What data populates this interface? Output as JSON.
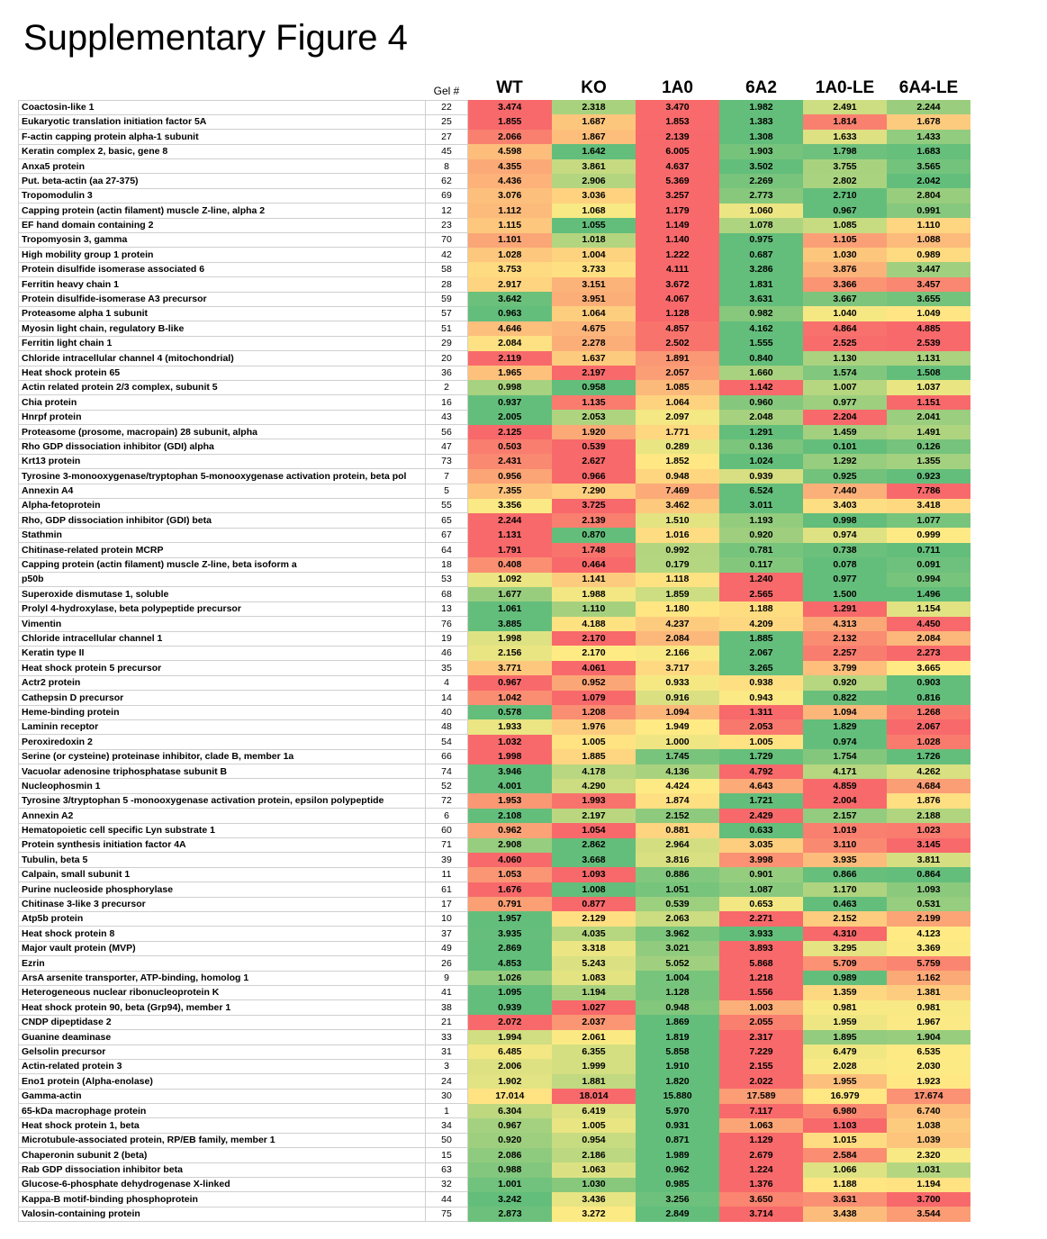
{
  "title": "Supplementary Figure 4",
  "chart_data": {
    "type": "heatmap",
    "gel_header": "Gel #",
    "columns": [
      "WT",
      "KO",
      "1A0",
      "6A2",
      "1A0-LE",
      "6A4-LE"
    ],
    "color_scale": {
      "low": "#63BE7B",
      "mid": "#FFEB84",
      "high": "#F8696B",
      "normalization": "per-row",
      "low_means": "row minimum (green)",
      "high_means": "row maximum (red)"
    },
    "rows": [
      {
        "protein": "Coactosin-like 1",
        "gel": 22,
        "values": [
          3.474,
          2.318,
          3.47,
          1.982,
          2.491,
          2.244
        ]
      },
      {
        "protein": "Eukaryotic translation initiation factor 5A",
        "gel": 25,
        "values": [
          1.855,
          1.687,
          1.853,
          1.383,
          1.814,
          1.678
        ]
      },
      {
        "protein": "F-actin capping protein alpha-1 subunit",
        "gel": 27,
        "values": [
          2.066,
          1.867,
          2.139,
          1.308,
          1.633,
          1.433
        ]
      },
      {
        "protein": "Keratin complex 2, basic, gene 8",
        "gel": 45,
        "values": [
          4.598,
          1.642,
          6.005,
          1.903,
          1.798,
          1.683
        ]
      },
      {
        "protein": "Anxa5 protein",
        "gel": 8,
        "values": [
          4.355,
          3.861,
          4.637,
          3.502,
          3.755,
          3.565
        ]
      },
      {
        "protein": "Put. beta-actin (aa 27-375)",
        "gel": 62,
        "values": [
          4.436,
          2.906,
          5.369,
          2.269,
          2.802,
          2.042
        ]
      },
      {
        "protein": "Tropomodulin 3",
        "gel": 69,
        "values": [
          3.076,
          3.036,
          3.257,
          2.773,
          2.71,
          2.804
        ]
      },
      {
        "protein": "Capping protein (actin filament) muscle Z-line, alpha 2",
        "gel": 12,
        "values": [
          1.112,
          1.068,
          1.179,
          1.06,
          0.967,
          0.991
        ]
      },
      {
        "protein": "EF hand domain containing 2",
        "gel": 23,
        "values": [
          1.115,
          1.055,
          1.149,
          1.078,
          1.085,
          1.11
        ]
      },
      {
        "protein": "Tropomyosin 3, gamma",
        "gel": 70,
        "values": [
          1.101,
          1.018,
          1.14,
          0.975,
          1.105,
          1.088
        ]
      },
      {
        "protein": "High mobility group 1 protein",
        "gel": 42,
        "values": [
          1.028,
          1.004,
          1.222,
          0.687,
          1.03,
          0.989
        ]
      },
      {
        "protein": "Protein disulfide isomerase associated 6",
        "gel": 58,
        "values": [
          3.753,
          3.733,
          4.111,
          3.286,
          3.876,
          3.447
        ]
      },
      {
        "protein": "Ferritin heavy chain 1",
        "gel": 28,
        "values": [
          2.917,
          3.151,
          3.672,
          1.831,
          3.366,
          3.457
        ]
      },
      {
        "protein": "Protein disulfide-isomerase A3 precursor",
        "gel": 59,
        "values": [
          3.642,
          3.951,
          4.067,
          3.631,
          3.667,
          3.655
        ]
      },
      {
        "protein": "Proteasome alpha 1 subunit",
        "gel": 57,
        "values": [
          0.963,
          1.064,
          1.128,
          0.982,
          1.04,
          1.049
        ]
      },
      {
        "protein": "Myosin light chain, regulatory B-like",
        "gel": 51,
        "values": [
          4.646,
          4.675,
          4.857,
          4.162,
          4.864,
          4.885
        ]
      },
      {
        "protein": "Ferritin light chain 1",
        "gel": 29,
        "values": [
          2.084,
          2.278,
          2.502,
          1.555,
          2.525,
          2.539
        ]
      },
      {
        "protein": "Chloride intracellular channel 4 (mitochondrial)",
        "gel": 20,
        "values": [
          2.119,
          1.637,
          1.891,
          0.84,
          1.13,
          1.131
        ]
      },
      {
        "protein": "Heat shock protein 65",
        "gel": 36,
        "values": [
          1.965,
          2.197,
          2.057,
          1.66,
          1.574,
          1.508
        ]
      },
      {
        "protein": "Actin related protein 2/3 complex, subunit 5",
        "gel": 2,
        "values": [
          0.998,
          0.958,
          1.085,
          1.142,
          1.007,
          1.037
        ]
      },
      {
        "protein": "Chia protein",
        "gel": 16,
        "values": [
          0.937,
          1.135,
          1.064,
          0.96,
          0.977,
          1.151
        ]
      },
      {
        "protein": "Hnrpf protein",
        "gel": 43,
        "values": [
          2.005,
          2.053,
          2.097,
          2.048,
          2.204,
          2.041
        ]
      },
      {
        "protein": "Proteasome (prosome, macropain) 28 subunit, alpha",
        "gel": 56,
        "values": [
          2.125,
          1.92,
          1.771,
          1.291,
          1.459,
          1.491
        ]
      },
      {
        "protein": "Rho GDP dissociation inhibitor (GDI) alpha",
        "gel": 47,
        "values": [
          0.503,
          0.539,
          0.289,
          0.136,
          0.101,
          0.126
        ]
      },
      {
        "protein": "Krt13 protein",
        "gel": 73,
        "values": [
          2.431,
          2.627,
          1.852,
          1.024,
          1.292,
          1.355
        ]
      },
      {
        "protein": "Tyrosine 3-monooxygenase/tryptophan 5-monooxygenase activation protein, beta pol",
        "gel": 7,
        "values": [
          0.956,
          0.966,
          0.948,
          0.939,
          0.925,
          0.923
        ]
      },
      {
        "protein": "Annexin A4",
        "gel": 5,
        "values": [
          7.355,
          7.29,
          7.469,
          6.524,
          7.44,
          7.786
        ]
      },
      {
        "protein": "Alpha-fetoprotein",
        "gel": 55,
        "values": [
          3.356,
          3.725,
          3.462,
          3.011,
          3.403,
          3.418
        ]
      },
      {
        "protein": "Rho, GDP dissociation inhibitor (GDI) beta",
        "gel": 65,
        "values": [
          2.244,
          2.139,
          1.51,
          1.193,
          0.998,
          1.077
        ]
      },
      {
        "protein": "Stathmin",
        "gel": 67,
        "values": [
          1.131,
          0.87,
          1.016,
          0.92,
          0.974,
          0.999
        ]
      },
      {
        "protein": "Chitinase-related protein MCRP",
        "gel": 64,
        "values": [
          1.791,
          1.748,
          0.992,
          0.781,
          0.738,
          0.711
        ]
      },
      {
        "protein": "Capping protein (actin filament) muscle Z-line, beta isoform a",
        "gel": 18,
        "values": [
          0.408,
          0.464,
          0.179,
          0.117,
          0.078,
          0.091
        ]
      },
      {
        "protein": "p50b",
        "gel": 53,
        "values": [
          1.092,
          1.141,
          1.118,
          1.24,
          0.977,
          0.994
        ]
      },
      {
        "protein": "Superoxide dismutase 1, soluble",
        "gel": 68,
        "values": [
          1.677,
          1.988,
          1.859,
          2.565,
          1.5,
          1.496
        ]
      },
      {
        "protein": "Prolyl 4-hydroxylase, beta polypeptide precursor",
        "gel": 13,
        "values": [
          1.061,
          1.11,
          1.18,
          1.188,
          1.291,
          1.154
        ]
      },
      {
        "protein": "Vimentin",
        "gel": 76,
        "values": [
          3.885,
          4.188,
          4.237,
          4.209,
          4.313,
          4.45
        ]
      },
      {
        "protein": "Chloride intracellular channel 1",
        "gel": 19,
        "values": [
          1.998,
          2.17,
          2.084,
          1.885,
          2.132,
          2.084
        ]
      },
      {
        "protein": "Keratin type II",
        "gel": 46,
        "values": [
          2.156,
          2.17,
          2.166,
          2.067,
          2.257,
          2.273
        ]
      },
      {
        "protein": "Heat shock protein 5 precursor",
        "gel": 35,
        "values": [
          3.771,
          4.061,
          3.717,
          3.265,
          3.799,
          3.665
        ]
      },
      {
        "protein": "Actr2 protein",
        "gel": 4,
        "values": [
          0.967,
          0.952,
          0.933,
          0.938,
          0.92,
          0.903
        ]
      },
      {
        "protein": "Cathepsin D precursor",
        "gel": 14,
        "values": [
          1.042,
          1.079,
          0.916,
          0.943,
          0.822,
          0.816
        ]
      },
      {
        "protein": "Heme-binding protein",
        "gel": 40,
        "values": [
          0.578,
          1.208,
          1.094,
          1.311,
          1.094,
          1.268
        ]
      },
      {
        "protein": "Laminin receptor",
        "gel": 48,
        "values": [
          1.933,
          1.976,
          1.949,
          2.053,
          1.829,
          2.067
        ]
      },
      {
        "protein": "Peroxiredoxin 2",
        "gel": 54,
        "values": [
          1.032,
          1.005,
          1.0,
          1.005,
          0.974,
          1.028
        ]
      },
      {
        "protein": "Serine (or cysteine) proteinase inhibitor, clade B, member 1a",
        "gel": 66,
        "values": [
          1.998,
          1.885,
          1.745,
          1.729,
          1.754,
          1.726
        ]
      },
      {
        "protein": "Vacuolar adenosine triphosphatase subunit B",
        "gel": 74,
        "values": [
          3.946,
          4.178,
          4.136,
          4.792,
          4.171,
          4.262
        ]
      },
      {
        "protein": "Nucleophosmin 1",
        "gel": 52,
        "values": [
          4.001,
          4.29,
          4.424,
          4.643,
          4.859,
          4.684
        ]
      },
      {
        "protein": "Tyrosine 3/tryptophan 5 -monooxygenase activation protein, epsilon polypeptide",
        "gel": 72,
        "values": [
          1.953,
          1.993,
          1.874,
          1.721,
          2.004,
          1.876
        ]
      },
      {
        "protein": "Annexin A2",
        "gel": 6,
        "values": [
          2.108,
          2.197,
          2.152,
          2.429,
          2.157,
          2.188
        ]
      },
      {
        "protein": "Hematopoietic cell specific Lyn substrate 1",
        "gel": 60,
        "values": [
          0.962,
          1.054,
          0.881,
          0.633,
          1.019,
          1.023
        ]
      },
      {
        "protein": "Protein synthesis initiation factor 4A",
        "gel": 71,
        "values": [
          2.908,
          2.862,
          2.964,
          3.035,
          3.11,
          3.145
        ]
      },
      {
        "protein": "Tubulin, beta 5",
        "gel": 39,
        "values": [
          4.06,
          3.668,
          3.816,
          3.998,
          3.935,
          3.811
        ]
      },
      {
        "protein": "Calpain, small subunit 1",
        "gel": 11,
        "values": [
          1.053,
          1.093,
          0.886,
          0.901,
          0.866,
          0.864
        ]
      },
      {
        "protein": "Purine nucleoside phosphorylase",
        "gel": 61,
        "values": [
          1.676,
          1.008,
          1.051,
          1.087,
          1.17,
          1.093
        ]
      },
      {
        "protein": "Chitinase 3-like 3 precursor",
        "gel": 17,
        "values": [
          0.791,
          0.877,
          0.539,
          0.653,
          0.463,
          0.531
        ]
      },
      {
        "protein": "Atp5b protein",
        "gel": 10,
        "values": [
          1.957,
          2.129,
          2.063,
          2.271,
          2.152,
          2.199
        ]
      },
      {
        "protein": "Heat shock protein 8",
        "gel": 37,
        "values": [
          3.935,
          4.035,
          3.962,
          3.933,
          4.31,
          4.123
        ]
      },
      {
        "protein": "Major vault protein (MVP)",
        "gel": 49,
        "values": [
          2.869,
          3.318,
          3.021,
          3.893,
          3.295,
          3.369
        ]
      },
      {
        "protein": "Ezrin",
        "gel": 26,
        "values": [
          4.853,
          5.243,
          5.052,
          5.868,
          5.709,
          5.759
        ]
      },
      {
        "protein": "ArsA arsenite transporter, ATP-binding, homolog 1",
        "gel": 9,
        "values": [
          1.026,
          1.083,
          1.004,
          1.218,
          0.989,
          1.162
        ]
      },
      {
        "protein": "Heterogeneous nuclear ribonucleoprotein K",
        "gel": 41,
        "values": [
          1.095,
          1.194,
          1.128,
          1.556,
          1.359,
          1.381
        ]
      },
      {
        "protein": "Heat shock protein 90, beta (Grp94), member 1",
        "gel": 38,
        "values": [
          0.939,
          1.027,
          0.948,
          1.003,
          0.981,
          0.981
        ]
      },
      {
        "protein": "CNDP dipeptidase 2",
        "gel": 21,
        "values": [
          2.072,
          2.037,
          1.869,
          2.055,
          1.959,
          1.967
        ]
      },
      {
        "protein": "Guanine deaminase",
        "gel": 33,
        "values": [
          1.994,
          2.061,
          1.819,
          2.317,
          1.895,
          1.904
        ]
      },
      {
        "protein": "Gelsolin precursor",
        "gel": 31,
        "values": [
          6.485,
          6.355,
          5.858,
          7.229,
          6.479,
          6.535
        ]
      },
      {
        "protein": "Actin-related protein 3",
        "gel": 3,
        "values": [
          2.006,
          1.999,
          1.91,
          2.155,
          2.028,
          2.03
        ]
      },
      {
        "protein": "Eno1 protein (Alpha-enolase)",
        "gel": 24,
        "values": [
          1.902,
          1.881,
          1.82,
          2.022,
          1.955,
          1.923
        ]
      },
      {
        "protein": "Gamma-actin",
        "gel": 30,
        "values": [
          17.014,
          18.014,
          15.88,
          17.589,
          16.979,
          17.674
        ]
      },
      {
        "protein": "65-kDa macrophage protein",
        "gel": 1,
        "values": [
          6.304,
          6.419,
          5.97,
          7.117,
          6.98,
          6.74
        ]
      },
      {
        "protein": "Heat shock protein 1, beta",
        "gel": 34,
        "values": [
          0.967,
          1.005,
          0.931,
          1.063,
          1.103,
          1.038
        ]
      },
      {
        "protein": "Microtubule-associated protein, RP/EB family, member 1",
        "gel": 50,
        "values": [
          0.92,
          0.954,
          0.871,
          1.129,
          1.015,
          1.039
        ]
      },
      {
        "protein": "Chaperonin subunit 2 (beta)",
        "gel": 15,
        "values": [
          2.086,
          2.186,
          1.989,
          2.679,
          2.584,
          2.32
        ]
      },
      {
        "protein": "Rab GDP dissociation inhibitor beta",
        "gel": 63,
        "values": [
          0.988,
          1.063,
          0.962,
          1.224,
          1.066,
          1.031
        ]
      },
      {
        "protein": "Glucose-6-phosphate dehydrogenase X-linked",
        "gel": 32,
        "values": [
          1.001,
          1.03,
          0.985,
          1.376,
          1.188,
          1.194
        ]
      },
      {
        "protein": "Kappa-B motif-binding phosphoprotein",
        "gel": 44,
        "values": [
          3.242,
          3.436,
          3.256,
          3.65,
          3.631,
          3.7
        ]
      },
      {
        "protein": "Valosin-containing protein",
        "gel": 75,
        "values": [
          2.873,
          3.272,
          2.849,
          3.714,
          3.438,
          3.544
        ]
      }
    ]
  }
}
